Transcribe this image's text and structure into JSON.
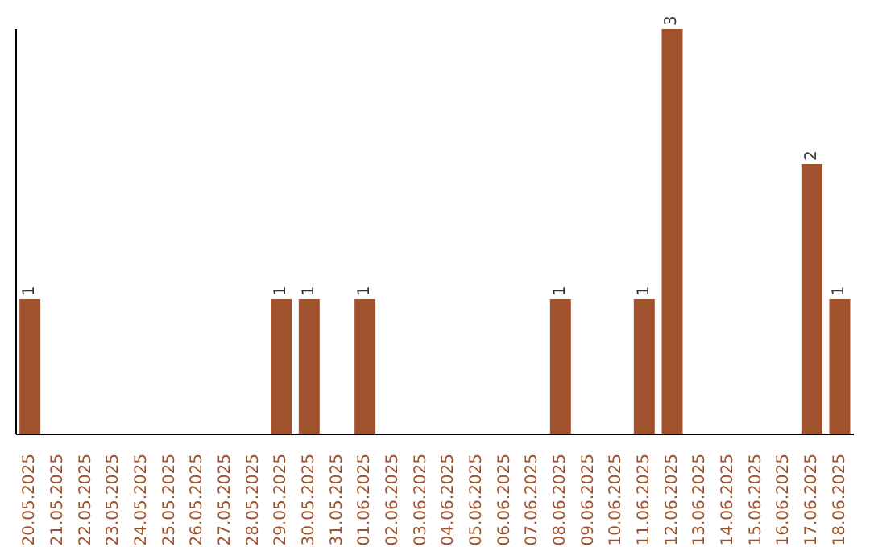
{
  "chart_data": {
    "type": "bar",
    "categories": [
      "20.05.2025",
      "21.05.2025",
      "22.05.2025",
      "23.05.2025",
      "24.05.2025",
      "25.05.2025",
      "26.05.2025",
      "27.05.2025",
      "28.05.2025",
      "29.05.2025",
      "30.05.2025",
      "31.05.2025",
      "01.06.2025",
      "02.06.2025",
      "03.06.2025",
      "04.06.2025",
      "05.06.2025",
      "06.06.2025",
      "07.06.2025",
      "08.06.2025",
      "09.06.2025",
      "10.06.2025",
      "11.06.2025",
      "12.06.2025",
      "13.06.2025",
      "14.06.2025",
      "15.06.2025",
      "16.06.2025",
      "17.06.2025",
      "18.06.2025"
    ],
    "values": [
      1,
      0,
      0,
      0,
      0,
      0,
      0,
      0,
      0,
      1,
      1,
      0,
      1,
      0,
      0,
      0,
      0,
      0,
      0,
      1,
      0,
      0,
      1,
      3,
      0,
      0,
      0,
      0,
      2,
      1
    ],
    "value_labels": [
      "1",
      null,
      null,
      null,
      null,
      null,
      null,
      null,
      null,
      "1",
      "1",
      null,
      "1",
      null,
      null,
      null,
      null,
      null,
      null,
      "1",
      null,
      null,
      "1",
      "3",
      null,
      null,
      null,
      null,
      "2",
      "1"
    ],
    "color": "#a0522d",
    "grid": false,
    "legend": false
  }
}
